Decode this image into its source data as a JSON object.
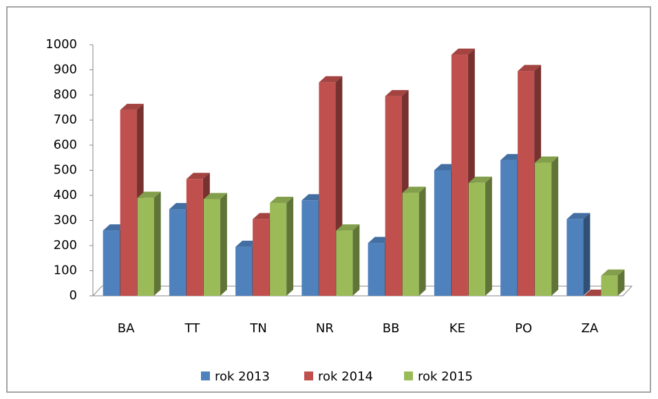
{
  "chart_data": {
    "type": "bar3d",
    "categories": [
      "BA",
      "TT",
      "TN",
      "NR",
      "BB",
      "KE",
      "PO",
      "ZA"
    ],
    "series": [
      {
        "name": "rok 2013",
        "color": "#4f81bd",
        "values": [
          260,
          345,
          195,
          380,
          210,
          500,
          540,
          305
        ]
      },
      {
        "name": "rok 2014",
        "color": "#c0504d",
        "values": [
          740,
          465,
          305,
          850,
          795,
          960,
          895,
          0
        ]
      },
      {
        "name": "rok 2015",
        "color": "#9bbb59",
        "values": [
          390,
          385,
          370,
          260,
          410,
          450,
          530,
          80
        ]
      }
    ],
    "ylim": [
      0,
      1000
    ],
    "yticks": [
      0,
      100,
      200,
      300,
      400,
      500,
      600,
      700,
      800,
      900,
      1000
    ],
    "grid": false,
    "legend": "bottom"
  }
}
